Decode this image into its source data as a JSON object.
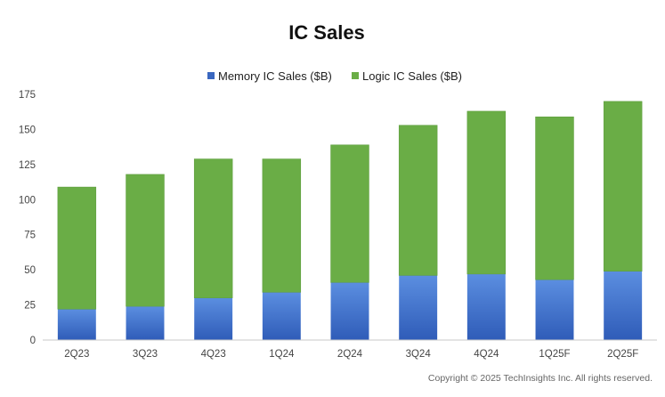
{
  "chart_data": {
    "type": "bar",
    "stacked": true,
    "title": "IC Sales",
    "categories": [
      "2Q23",
      "3Q23",
      "4Q23",
      "1Q24",
      "2Q24",
      "3Q24",
      "4Q24",
      "1Q25F",
      "2Q25F"
    ],
    "series": [
      {
        "name": "Memory IC Sales ($B)",
        "values": [
          22,
          24,
          30,
          34,
          41,
          46,
          47,
          43,
          49
        ],
        "color": "#3a67c0"
      },
      {
        "name": "Logic IC Sales ($B)",
        "values": [
          87,
          94,
          99,
          95,
          98,
          107,
          116,
          116,
          121
        ],
        "color": "#6aad46"
      }
    ],
    "yticks": [
      0,
      25,
      50,
      75,
      100,
      125,
      150,
      175
    ],
    "ylim": [
      0,
      175
    ],
    "xlabel": "",
    "ylabel": "",
    "legend_position": "top-center",
    "grid": false
  },
  "footer": {
    "copyright": "Copyright © 2025 TechInsights Inc.  All rights reserved."
  }
}
